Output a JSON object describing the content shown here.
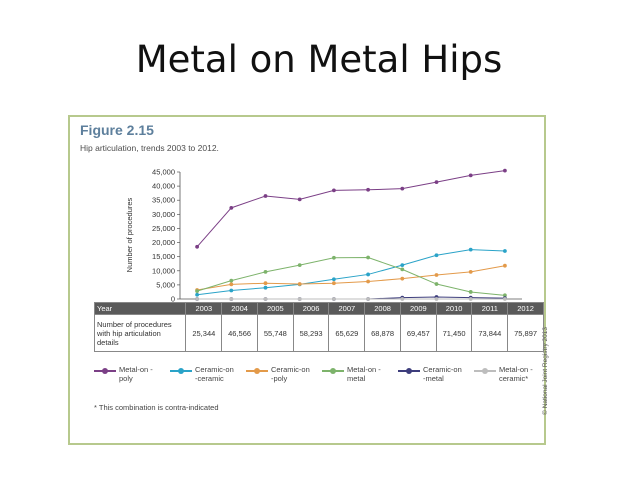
{
  "slide": {
    "title": "Metal on Metal Hips"
  },
  "figure": {
    "label": "Figure 2.15",
    "subtitle": "Hip articulation, trends 2003 to 2012.",
    "copyright": "© National Joint Registry 2013",
    "footnote": "* This combination is contra-indicated"
  },
  "table": {
    "header_label": "Year",
    "row_label": "Number of procedures with hip articulation details",
    "years": [
      "2003",
      "2004",
      "2005",
      "2006",
      "2007",
      "2008",
      "2009",
      "2010",
      "2011",
      "2012"
    ],
    "values": [
      "25,344",
      "46,566",
      "55,748",
      "58,293",
      "65,629",
      "68,878",
      "69,457",
      "71,450",
      "73,844",
      "75,897"
    ]
  },
  "chart_data": {
    "type": "line",
    "title": "",
    "xlabel": "",
    "ylabel": "Number of procedures",
    "x": [
      "2003",
      "2004",
      "2005",
      "2006",
      "2007",
      "2008",
      "2009",
      "2010",
      "2011",
      "2012"
    ],
    "ylim": [
      0,
      45000
    ],
    "yticks": [
      0,
      5000,
      10000,
      15000,
      20000,
      25000,
      30000,
      35000,
      40000,
      45000
    ],
    "ytick_labels": [
      "0",
      "5,000",
      "10,000",
      "15,000",
      "20,000",
      "25,000",
      "30,000",
      "35,000",
      "40,000",
      "45,000"
    ],
    "grid": false,
    "legend": "bottom",
    "series": [
      {
        "name": "Metal-on -poly",
        "color": "#7b3f86",
        "values": [
          18500,
          32300,
          36500,
          35300,
          38500,
          38700,
          39100,
          41400,
          43800,
          45500
        ]
      },
      {
        "name": "Ceramic-on -ceramic",
        "color": "#2aa3c8",
        "values": [
          1500,
          3000,
          4000,
          5200,
          7000,
          8700,
          12000,
          15500,
          17500,
          17000
        ]
      },
      {
        "name": "Ceramic-on -poly",
        "color": "#e39a4a",
        "values": [
          3200,
          5200,
          5600,
          5300,
          5600,
          6200,
          7200,
          8500,
          9600,
          11800
        ]
      },
      {
        "name": "Metal-on -metal",
        "color": "#7db36b",
        "values": [
          2800,
          6500,
          9600,
          12000,
          14600,
          14700,
          10500,
          5300,
          2500,
          1300
        ]
      },
      {
        "name": "Ceramic-on -metal",
        "color": "#3d3d7c",
        "values": [
          0,
          0,
          0,
          0,
          0,
          0,
          500,
          700,
          500,
          300
        ]
      },
      {
        "name": "Metal-on -ceramic*",
        "color": "#bdbdbd",
        "values": [
          0,
          0,
          0,
          0,
          0,
          0,
          0,
          0,
          0,
          0
        ]
      }
    ]
  }
}
